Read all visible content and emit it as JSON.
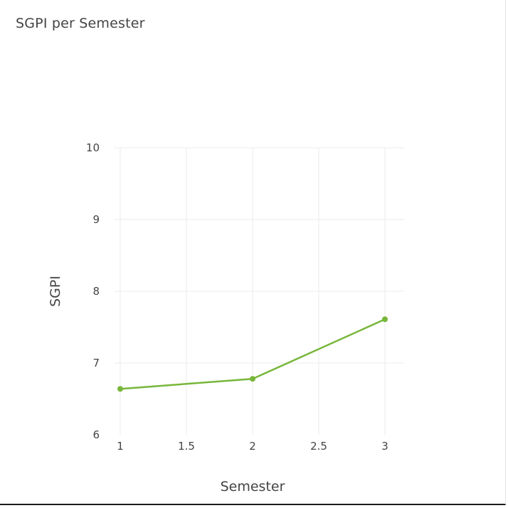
{
  "card": {
    "title": "SGPI per Semester"
  },
  "chart_data": {
    "type": "line",
    "title": "",
    "xlabel": "Semester",
    "ylabel": "SGPI",
    "xlim": [
      1,
      3
    ],
    "ylim": [
      6,
      10
    ],
    "x_ticks": [
      "1",
      "1.5",
      "2",
      "2.5",
      "3"
    ],
    "y_ticks": [
      "6",
      "7",
      "8",
      "9",
      "10"
    ],
    "grid": true,
    "series": [
      {
        "x": [
          1,
          2,
          3
        ],
        "y": [
          6.64,
          6.78,
          7.61
        ],
        "color": "#77b63a"
      }
    ]
  }
}
